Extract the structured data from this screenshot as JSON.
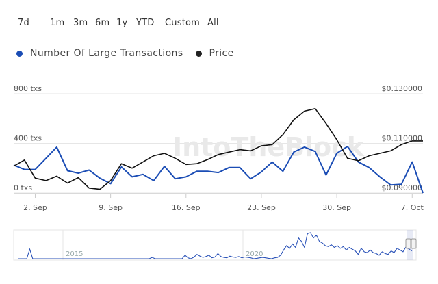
{
  "range_buttons": [
    "7d",
    "1m",
    "3m",
    "6m",
    "1y",
    "YTD",
    "Custom",
    "All"
  ],
  "watermark": "IntoTheBlock",
  "colors": {
    "transactions": "#1b4db5",
    "price": "#111111",
    "grid": "#e6e6e6",
    "navigator": "#2a52b8"
  },
  "chart_data": {
    "type": "line",
    "title": "",
    "legend": [
      {
        "name": "Number Of Large Transactions",
        "color": "#1b4db5"
      },
      {
        "name": "Price",
        "color": "#222222"
      }
    ],
    "x_tick_labels": [
      "2. Sep",
      "9. Sep",
      "16. Sep",
      "23. Sep",
      "30. Sep",
      "7. Oct"
    ],
    "x_range": [
      "2020-08-31",
      "2020-10-08"
    ],
    "y_left": {
      "label_ticks": [
        "0 txs",
        "400 txs",
        "800 txs"
      ],
      "range": [
        0,
        800
      ]
    },
    "y_right": {
      "label_ticks": [
        "$0.090000",
        "$0.110000",
        "$0.130000"
      ],
      "range": [
        0.09,
        0.13
      ]
    },
    "series": [
      {
        "name": "Number Of Large Transactions",
        "axis": "left",
        "dates": [
          "2020-08-31",
          "2020-09-01",
          "2020-09-02",
          "2020-09-03",
          "2020-09-04",
          "2020-09-05",
          "2020-09-06",
          "2020-09-07",
          "2020-09-08",
          "2020-09-09",
          "2020-09-10",
          "2020-09-11",
          "2020-09-12",
          "2020-09-13",
          "2020-09-14",
          "2020-09-15",
          "2020-09-16",
          "2020-09-17",
          "2020-09-18",
          "2020-09-19",
          "2020-09-20",
          "2020-09-21",
          "2020-09-22",
          "2020-09-23",
          "2020-09-24",
          "2020-09-25",
          "2020-09-26",
          "2020-09-27",
          "2020-09-28",
          "2020-09-29",
          "2020-09-30",
          "2020-10-01",
          "2020-10-02",
          "2020-10-03",
          "2020-10-04",
          "2020-10-05",
          "2020-10-06",
          "2020-10-07",
          "2020-10-08"
        ],
        "values": [
          225,
          190,
          190,
          280,
          370,
          180,
          160,
          185,
          120,
          75,
          210,
          130,
          150,
          100,
          215,
          115,
          130,
          175,
          175,
          165,
          205,
          205,
          115,
          170,
          250,
          175,
          330,
          370,
          335,
          145,
          320,
          375,
          250,
          205,
          130,
          65,
          70,
          250,
          0
        ]
      },
      {
        "name": "Price",
        "axis": "right",
        "dates": [
          "2020-08-31",
          "2020-09-01",
          "2020-09-02",
          "2020-09-03",
          "2020-09-04",
          "2020-09-05",
          "2020-09-06",
          "2020-09-07",
          "2020-09-08",
          "2020-09-09",
          "2020-09-10",
          "2020-09-11",
          "2020-09-12",
          "2020-09-13",
          "2020-09-14",
          "2020-09-15",
          "2020-09-16",
          "2020-09-17",
          "2020-09-18",
          "2020-09-19",
          "2020-09-20",
          "2020-09-21",
          "2020-09-22",
          "2020-09-23",
          "2020-09-24",
          "2020-09-25",
          "2020-09-26",
          "2020-09-27",
          "2020-09-28",
          "2020-09-29",
          "2020-09-30",
          "2020-10-01",
          "2020-10-02",
          "2020-10-03",
          "2020-10-04",
          "2020-10-05",
          "2020-10-06",
          "2020-10-07",
          "2020-10-08"
        ],
        "values": [
          0.1008,
          0.1033,
          0.096,
          0.095,
          0.0968,
          0.094,
          0.0962,
          0.092,
          0.0915,
          0.095,
          0.1018,
          0.1,
          0.1025,
          0.105,
          0.106,
          0.104,
          0.1015,
          0.1018,
          0.1035,
          0.1055,
          0.1065,
          0.1075,
          0.107,
          0.109,
          0.1095,
          0.1135,
          0.1195,
          0.123,
          0.124,
          0.118,
          0.1115,
          0.104,
          0.103,
          0.105,
          0.106,
          0.107,
          0.1095,
          0.111,
          0.111
        ]
      }
    ],
    "navigator": {
      "labels": [
        "2015",
        "2020"
      ],
      "values": [
        0,
        0,
        0,
        0,
        22,
        0,
        0,
        0,
        0,
        0,
        0,
        0,
        0,
        0,
        0,
        0,
        0,
        0,
        0,
        0,
        0,
        0,
        0,
        0,
        0,
        0,
        0,
        0,
        0,
        0,
        0,
        0,
        0,
        0,
        0,
        0,
        0,
        0,
        0,
        0,
        0,
        0,
        0,
        0,
        0,
        3,
        0,
        0,
        0,
        0,
        0,
        0,
        0,
        0,
        0,
        0,
        8,
        2,
        0,
        4,
        10,
        6,
        3,
        5,
        8,
        2,
        4,
        12,
        5,
        3,
        2,
        6,
        4,
        3,
        5,
        2,
        4,
        3,
        2,
        0,
        1,
        2,
        3,
        2,
        1,
        0,
        2,
        3,
        8,
        20,
        30,
        24,
        34,
        26,
        48,
        40,
        26,
        58,
        60,
        48,
        54,
        40,
        36,
        30,
        28,
        32,
        26,
        30,
        24,
        28,
        20,
        26,
        22,
        18,
        10,
        24,
        16,
        14,
        20,
        14,
        12,
        8,
        16,
        12,
        10,
        18,
        14,
        24,
        20,
        16,
        28,
        22,
        18
      ]
    }
  }
}
